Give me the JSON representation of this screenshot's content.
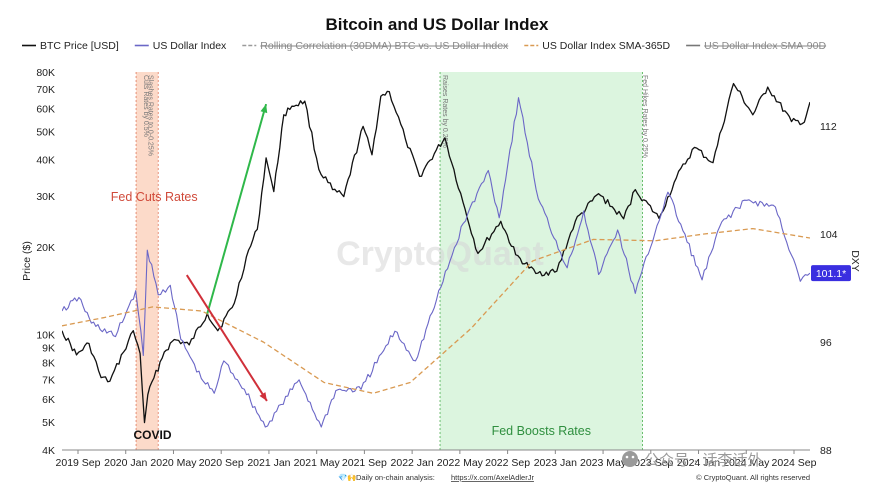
{
  "chart_data": {
    "type": "line",
    "title": "Bitcoin and US Dollar Index",
    "legend": {
      "placement": "top",
      "entries": [
        {
          "name": "BTC Price [USD]",
          "color": "#111111",
          "style": "solid",
          "struck": false
        },
        {
          "name": "US Dollar Index",
          "color": "#6b67c7",
          "style": "solid",
          "struck": false
        },
        {
          "name": "Rolling Correlation (30DMA) BTC vs. US Dollar Index",
          "color": "#9a9a9a",
          "style": "dashed",
          "struck": true
        },
        {
          "name": "US Dollar Index SMA-365D",
          "color": "#d99a52",
          "style": "dashed",
          "struck": false
        },
        {
          "name": "US Dollar Index SMA-90D",
          "color": "#777777",
          "style": "solid",
          "struck": true
        }
      ]
    },
    "x_ticks": [
      "2019 Sep",
      "2020 Jan",
      "2020 May",
      "2020 Sep",
      "2021 Jan",
      "2021 May",
      "2021 Sep",
      "2022 Jan",
      "2022 May",
      "2022 Sep",
      "2023 Jan",
      "2023 May",
      "2023 Sep",
      "2024 Jan",
      "2024 May",
      "2024 Sep"
    ],
    "x_range": [
      "2019-08-20",
      "2024-09-20"
    ],
    "y_left": {
      "label": "Price ($)",
      "scale": "log",
      "range": [
        4000,
        80000
      ],
      "ticks": [
        "80K",
        "70K",
        "60K",
        "50K",
        "40K",
        "30K",
        "20K",
        "10K",
        "9K",
        "8K",
        "7K",
        "6K",
        "5K",
        "4K"
      ]
    },
    "y_right": {
      "label": "DXY",
      "scale": "linear",
      "range": [
        88,
        116
      ],
      "ticks": [
        "112",
        "104",
        "96",
        "88"
      ],
      "current_value_label": "101.1*"
    },
    "grid": false,
    "series": [
      {
        "name": "BTC Price [USD]",
        "axis": "left",
        "color": "#111111",
        "points": [
          [
            "2019-08-20",
            10300
          ],
          [
            "2019-09-25",
            8500
          ],
          [
            "2019-10-26",
            9300
          ],
          [
            "2019-11-25",
            7100
          ],
          [
            "2019-12-17",
            6900
          ],
          [
            "2020-01-20",
            8700
          ],
          [
            "2020-02-13",
            10300
          ],
          [
            "2020-03-01",
            8600
          ],
          [
            "2020-03-12",
            4970
          ],
          [
            "2020-03-20",
            6200
          ],
          [
            "2020-04-30",
            8700
          ],
          [
            "2020-05-25",
            9600
          ],
          [
            "2020-07-01",
            9200
          ],
          [
            "2020-08-15",
            11800
          ],
          [
            "2020-09-10",
            10300
          ],
          [
            "2020-10-21",
            12800
          ],
          [
            "2020-11-20",
            18500
          ],
          [
            "2020-12-17",
            23000
          ],
          [
            "2021-01-08",
            40500
          ],
          [
            "2021-01-27",
            31000
          ],
          [
            "2021-02-21",
            57000
          ],
          [
            "2021-03-13",
            61000
          ],
          [
            "2021-04-14",
            63500
          ],
          [
            "2021-05-19",
            37000
          ],
          [
            "2021-06-22",
            31500
          ],
          [
            "2021-07-20",
            29800
          ],
          [
            "2021-09-06",
            52000
          ],
          [
            "2021-09-28",
            41500
          ],
          [
            "2021-10-20",
            66000
          ],
          [
            "2021-11-10",
            68500
          ],
          [
            "2021-12-20",
            47000
          ],
          [
            "2022-01-24",
            35000
          ],
          [
            "2022-03-28",
            47500
          ],
          [
            "2022-05-12",
            28500
          ],
          [
            "2022-06-18",
            19000
          ],
          [
            "2022-08-14",
            24500
          ],
          [
            "2022-09-20",
            18800
          ],
          [
            "2022-11-09",
            16200
          ],
          [
            "2022-12-31",
            16500
          ],
          [
            "2023-02-15",
            24500
          ],
          [
            "2023-04-14",
            30500
          ],
          [
            "2023-06-15",
            25000
          ],
          [
            "2023-07-14",
            31500
          ],
          [
            "2023-09-11",
            25100
          ],
          [
            "2023-10-24",
            34500
          ],
          [
            "2023-12-08",
            44000
          ],
          [
            "2024-01-23",
            39000
          ],
          [
            "2024-03-14",
            73000
          ],
          [
            "2024-05-01",
            57000
          ],
          [
            "2024-06-07",
            71000
          ],
          [
            "2024-08-05",
            54000
          ],
          [
            "2024-09-06",
            53800
          ],
          [
            "2024-09-20",
            63000
          ]
        ]
      },
      {
        "name": "US Dollar Index",
        "axis": "right",
        "color": "#6b67c7",
        "points": [
          [
            "2019-08-20",
            98.3
          ],
          [
            "2019-10-01",
            99.3
          ],
          [
            "2019-11-01",
            97.4
          ],
          [
            "2019-12-31",
            96.4
          ],
          [
            "2020-02-19",
            99.8
          ],
          [
            "2020-03-09",
            95.0
          ],
          [
            "2020-03-19",
            102.8
          ],
          [
            "2020-04-15",
            99.5
          ],
          [
            "2020-05-15",
            100.2
          ],
          [
            "2020-06-10",
            96.2
          ],
          [
            "2020-07-31",
            93.3
          ],
          [
            "2020-09-01",
            92.2
          ],
          [
            "2020-09-25",
            94.6
          ],
          [
            "2020-11-15",
            92.5
          ],
          [
            "2021-01-06",
            89.7
          ],
          [
            "2021-03-31",
            93.2
          ],
          [
            "2021-05-25",
            89.7
          ],
          [
            "2021-06-30",
            92.4
          ],
          [
            "2021-09-01",
            92.5
          ],
          [
            "2021-11-24",
            96.8
          ],
          [
            "2022-01-14",
            94.6
          ],
          [
            "2022-03-07",
            99.1
          ],
          [
            "2022-05-13",
            104.8
          ],
          [
            "2022-07-14",
            108.7
          ],
          [
            "2022-08-10",
            105.2
          ],
          [
            "2022-09-27",
            114.1
          ],
          [
            "2022-11-15",
            106.6
          ],
          [
            "2023-01-26",
            101.5
          ],
          [
            "2023-03-08",
            105.7
          ],
          [
            "2023-04-14",
            101.0
          ],
          [
            "2023-05-31",
            104.3
          ],
          [
            "2023-07-14",
            99.6
          ],
          [
            "2023-10-03",
            107.1
          ],
          [
            "2023-12-27",
            100.6
          ],
          [
            "2024-02-14",
            104.9
          ],
          [
            "2024-04-16",
            106.5
          ],
          [
            "2024-06-26",
            106.0
          ],
          [
            "2024-08-27",
            100.5
          ],
          [
            "2024-09-20",
            101.1
          ]
        ]
      },
      {
        "name": "US Dollar Index SMA-365D",
        "axis": "right",
        "color": "#d99a52",
        "dashed": true,
        "points": [
          [
            "2019-08-20",
            97.2
          ],
          [
            "2019-12-01",
            97.8
          ],
          [
            "2020-04-01",
            98.6
          ],
          [
            "2020-08-01",
            98.3
          ],
          [
            "2021-01-01",
            96.0
          ],
          [
            "2021-06-01",
            93.0
          ],
          [
            "2021-10-01",
            92.2
          ],
          [
            "2022-01-01",
            93.0
          ],
          [
            "2022-06-01",
            97.0
          ],
          [
            "2022-11-01",
            102.0
          ],
          [
            "2023-04-01",
            103.6
          ],
          [
            "2023-09-01",
            103.5
          ],
          [
            "2024-01-01",
            104.0
          ],
          [
            "2024-05-01",
            104.4
          ],
          [
            "2024-09-20",
            103.7
          ]
        ]
      }
    ],
    "shaded_regions": [
      {
        "label": "Fed Cuts Rates",
        "start": "2020-02-20",
        "end": "2020-04-15",
        "color": "#fbd3c0"
      },
      {
        "label": "Fed Boosts Rates",
        "start": "2022-03-16",
        "end": "2023-08-01",
        "color": "#d6f3d9"
      }
    ],
    "vertical_markers": [
      {
        "date": "2020-03-03",
        "text": "Cuts Rates by 0.5%"
      },
      {
        "date": "2020-03-15",
        "text": "Slashes Rates to 0-0.25%"
      },
      {
        "date": "2022-03-16",
        "text": "Raises Rates by 0.25%"
      },
      {
        "date": "2023-07-26",
        "text": "Fed Hikes Rates by 0.25%"
      }
    ],
    "annotations": [
      {
        "text": "COVID",
        "date": "2020-03-12"
      },
      {
        "text": "Fed Cuts Rates",
        "color": "#d04a3a"
      },
      {
        "text": "Fed Boosts Rates",
        "color": "#2f8f3f"
      }
    ],
    "arrows": [
      {
        "color": "#2fb84a",
        "from": [
          "2020-08-15",
          11800
        ],
        "to": [
          "2021-01-08",
          62000
        ],
        "axis": "left"
      },
      {
        "color": "#d0303a",
        "from": [
          "2020-06-25",
          16000
        ],
        "to": [
          "2021-01-10",
          5900
        ],
        "axis": "left"
      }
    ]
  },
  "watermark": "CryptoQuant",
  "footer": {
    "source_text": "Daily on-chain analysis:",
    "source_link": "https://x.com/AxelAdlerJr",
    "copyright": "© CryptoQuant. All rights reserved",
    "social_badge": "公众号 · 话李话外"
  }
}
